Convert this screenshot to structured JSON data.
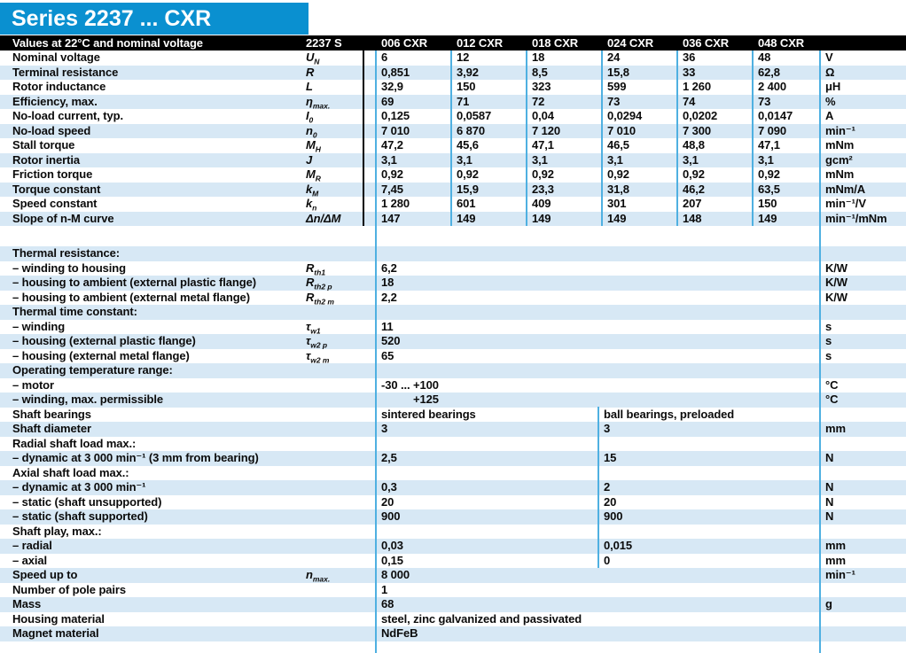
{
  "title": "Series 2237 ... CXR",
  "colors": {
    "title_bar": "#0a90d0",
    "header_bar": "#000000",
    "stripe": "#d7e8f5",
    "divider": "#4fb0e1"
  },
  "header": {
    "label": "Values at 22°C and nominal voltage",
    "series": "2237 S",
    "columns": [
      "006 CXR",
      "012 CXR",
      "018 CXR",
      "024 CXR",
      "036 CXR",
      "048 CXR"
    ],
    "units_label": ""
  },
  "spec_rows": [
    {
      "label": "Nominal voltage",
      "sym": "U",
      "sub": "N",
      "values": [
        "6",
        "12",
        "18",
        "24",
        "36",
        "48"
      ],
      "unit": "V"
    },
    {
      "label": "Terminal resistance",
      "sym": "R",
      "sub": "",
      "values": [
        "0,851",
        "3,92",
        "8,5",
        "15,8",
        "33",
        "62,8"
      ],
      "unit": "Ω"
    },
    {
      "label": "Rotor inductance",
      "sym": "L",
      "sub": "",
      "values": [
        "32,9",
        "150",
        "323",
        "599",
        "1 260",
        "2 400"
      ],
      "unit": "μH"
    },
    {
      "label": "Efficiency, max.",
      "sym": "η",
      "sub": "max.",
      "values": [
        "69",
        "71",
        "72",
        "73",
        "74",
        "73"
      ],
      "unit": "%"
    },
    {
      "label": "No-load current, typ.",
      "sym": "I",
      "sub": "0",
      "values": [
        "0,125",
        "0,0587",
        "0,04",
        "0,0294",
        "0,0202",
        "0,0147"
      ],
      "unit": "A"
    },
    {
      "label": "No-load speed",
      "sym": "n",
      "sub": "0",
      "values": [
        "7 010",
        "6 870",
        "7 120",
        "7 010",
        "7 300",
        "7 090"
      ],
      "unit": "min⁻¹"
    },
    {
      "label": "Stall torque",
      "sym": "M",
      "sub": "H",
      "values": [
        "47,2",
        "45,6",
        "47,1",
        "46,5",
        "48,8",
        "47,1"
      ],
      "unit": "mNm"
    },
    {
      "label": "Rotor inertia",
      "sym": "J",
      "sub": "",
      "values": [
        "3,1",
        "3,1",
        "3,1",
        "3,1",
        "3,1",
        "3,1"
      ],
      "unit": "gcm²"
    },
    {
      "label": "Friction torque",
      "sym": "M",
      "sub": "R",
      "values": [
        "0,92",
        "0,92",
        "0,92",
        "0,92",
        "0,92",
        "0,92"
      ],
      "unit": "mNm"
    },
    {
      "label": "Torque constant",
      "sym": "k",
      "sub": "M",
      "values": [
        "7,45",
        "15,9",
        "23,3",
        "31,8",
        "46,2",
        "63,5"
      ],
      "unit": "mNm/A"
    },
    {
      "label": "Speed constant",
      "sym": "k",
      "sub": "n",
      "values": [
        "1 280",
        "601",
        "409",
        "301",
        "207",
        "150"
      ],
      "unit": "min⁻¹/V"
    },
    {
      "label": "Slope of n-M curve",
      "sym": "Δn/ΔM",
      "sub": "",
      "values": [
        "147",
        "149",
        "149",
        "149",
        "148",
        "149"
      ],
      "unit": "min⁻¹/mNm"
    }
  ],
  "detail_rows": [
    {
      "t": "sec",
      "label": "Thermal resistance:"
    },
    {
      "t": "one",
      "label": "– winding to housing",
      "sym": "R",
      "sub": "th1",
      "value": "6,2",
      "unit": "K/W"
    },
    {
      "t": "one",
      "label": "– housing to ambient (external plastic flange)",
      "sym": "R",
      "sub": "th2 p",
      "value": "18",
      "unit": "K/W"
    },
    {
      "t": "one",
      "label": "– housing to ambient (external metal flange)",
      "sym": "R",
      "sub": "th2 m",
      "value": "2,2",
      "unit": "K/W"
    },
    {
      "t": "sec",
      "label": "Thermal time constant:"
    },
    {
      "t": "one",
      "label": "– winding",
      "sym": "τ",
      "sub": "w1",
      "value": "11",
      "unit": "s"
    },
    {
      "t": "one",
      "label": "– housing (external plastic flange)",
      "sym": "τ",
      "sub": "w2 p",
      "value": "520",
      "unit": "s"
    },
    {
      "t": "one",
      "label": "– housing (external metal flange)",
      "sym": "τ",
      "sub": "w2 m",
      "value": "65",
      "unit": "s"
    },
    {
      "t": "sec",
      "label": "Operating temperature range:"
    },
    {
      "t": "one",
      "label": "– motor",
      "sym": "",
      "sub": "",
      "value": "-30 ... +100",
      "unit": "°C"
    },
    {
      "t": "one",
      "label": "– winding, max. permissible",
      "sym": "",
      "sub": "",
      "value": "+125",
      "unit": "°C",
      "indent": true
    },
    {
      "t": "two",
      "label": "Shaft bearings",
      "left": "sintered bearings",
      "right": "ball bearings, preloaded",
      "unit": ""
    },
    {
      "t": "two",
      "label": "Shaft diameter",
      "left": "3",
      "right": "3",
      "unit": "mm"
    },
    {
      "t": "sec",
      "label": "Radial shaft load max.:"
    },
    {
      "t": "two",
      "label": "– dynamic at 3 000 min⁻¹ (3 mm from bearing)",
      "left": "2,5",
      "right": "15",
      "unit": "N"
    },
    {
      "t": "sec",
      "label": "Axial shaft load max.:"
    },
    {
      "t": "two",
      "label": "– dynamic at 3 000 min⁻¹",
      "left": "0,3",
      "right": "2",
      "unit": "N"
    },
    {
      "t": "two",
      "label": "– static (shaft unsupported)",
      "left": "20",
      "right": "20",
      "unit": "N"
    },
    {
      "t": "two",
      "label": "– static (shaft supported)",
      "left": "900",
      "right": "900",
      "unit": "N"
    },
    {
      "t": "sec",
      "label": "Shaft play, max.:"
    },
    {
      "t": "two",
      "label": "– radial",
      "left": "0,03",
      "right": "0,015",
      "unit": "mm"
    },
    {
      "t": "two",
      "label": "– axial",
      "left": "0,15",
      "right": "0",
      "unit": "mm"
    },
    {
      "t": "one",
      "label": "Speed up to",
      "sym": "n",
      "sub": "max.",
      "value": "8 000",
      "unit": "min⁻¹"
    },
    {
      "t": "one",
      "label": "Number of pole pairs",
      "sym": "",
      "sub": "",
      "value": "1",
      "unit": ""
    },
    {
      "t": "one",
      "label": "Mass",
      "sym": "",
      "sub": "",
      "value": "68",
      "unit": "g"
    },
    {
      "t": "one",
      "label": "Housing material",
      "sym": "",
      "sub": "",
      "value": "steel, zinc galvanized and passivated",
      "unit": ""
    },
    {
      "t": "one",
      "label": "Magnet material",
      "sym": "",
      "sub": "",
      "value": "NdFeB",
      "unit": ""
    }
  ]
}
